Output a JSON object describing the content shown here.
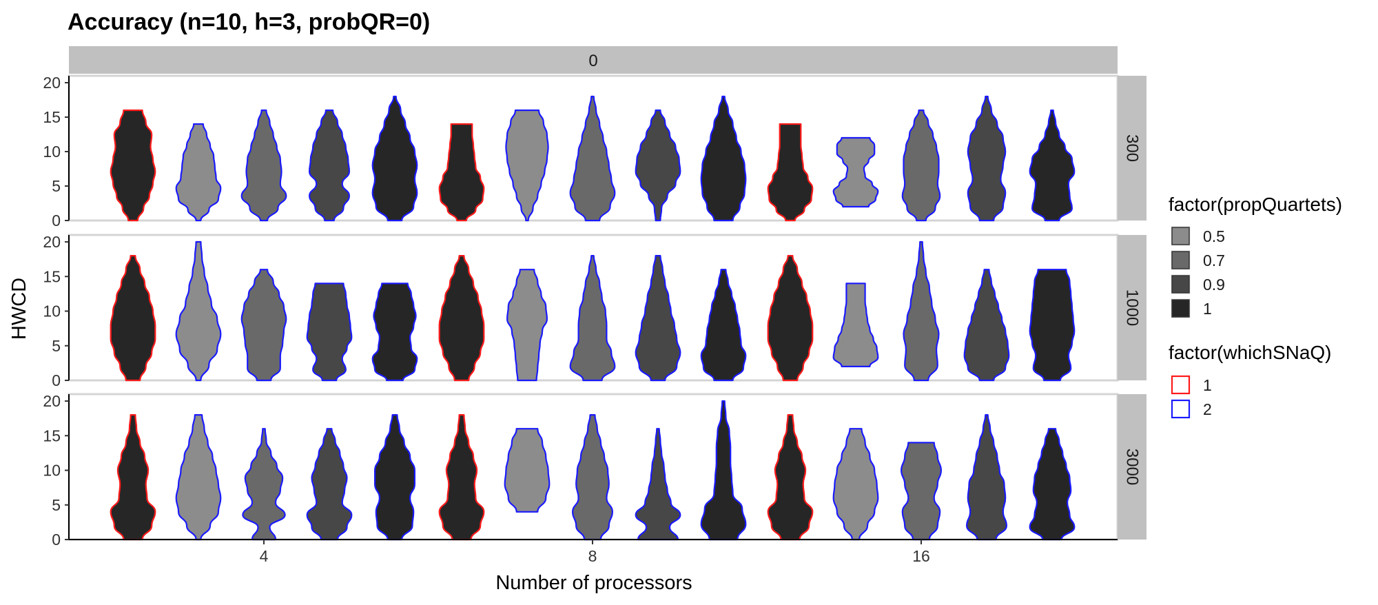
{
  "chart_data": {
    "type": "violin",
    "title": "Accuracy (n=10, h=3, probQR=0)",
    "xlabel": "Number of processors",
    "ylabel": "HWCD",
    "ylim": [
      0,
      21
    ],
    "y_ticks": [
      "0",
      "5",
      "10",
      "15",
      "20"
    ],
    "x_categories": [
      "4",
      "8",
      "16"
    ],
    "column_facet": "0",
    "row_facets": [
      "300",
      "1000",
      "3000"
    ],
    "legend_fill": {
      "title": "factor(propQuartets)",
      "levels": [
        "0.5",
        "0.7",
        "0.9",
        "1"
      ],
      "colors": [
        "#8c8c8c",
        "#696969",
        "#474747",
        "#262626"
      ]
    },
    "legend_color": {
      "title": "factor(whichSNaQ)",
      "levels": [
        "1",
        "2"
      ],
      "colors": [
        "#ff1a1a",
        "#1a1aff"
      ]
    },
    "groups": [
      {
        "propQuartets": "1",
        "whichSNaQ": "1"
      },
      {
        "propQuartets": "0.5",
        "whichSNaQ": "2"
      },
      {
        "propQuartets": "0.7",
        "whichSNaQ": "2"
      },
      {
        "propQuartets": "0.9",
        "whichSNaQ": "2"
      },
      {
        "propQuartets": "1",
        "whichSNaQ": "2"
      }
    ],
    "violins": [
      {
        "rows": "300",
        "processors": "4",
        "group": 0,
        "range": [
          0,
          16
        ],
        "width": [
          0.2,
          0.45,
          0.7,
          0.85,
          0.95,
          0.85,
          0.75,
          0.8,
          0.55,
          0.4
        ]
      },
      {
        "rows": "300",
        "processors": "4",
        "group": 1,
        "range": [
          0,
          14
        ],
        "width": [
          0.1,
          0.45,
          0.85,
          0.95,
          0.75,
          0.7,
          0.65,
          0.5,
          0.35,
          0.2
        ]
      },
      {
        "rows": "300",
        "processors": "4",
        "group": 2,
        "range": [
          0,
          16
        ],
        "width": [
          0.15,
          0.6,
          0.95,
          0.7,
          0.75,
          0.7,
          0.55,
          0.4,
          0.25,
          0.1
        ]
      },
      {
        "rows": "300",
        "processors": "4",
        "group": 3,
        "range": [
          0,
          16
        ],
        "width": [
          0.2,
          0.6,
          0.85,
          0.55,
          0.85,
          0.8,
          0.7,
          0.55,
          0.35,
          0.15
        ]
      },
      {
        "rows": "300",
        "processors": "4",
        "group": 4,
        "range": [
          0,
          18
        ],
        "width": [
          0.3,
          0.8,
          0.95,
          0.85,
          0.95,
          0.85,
          0.65,
          0.45,
          0.25,
          0.05
        ]
      },
      {
        "rows": "300",
        "processors": "8",
        "group": 0,
        "range": [
          0,
          14
        ],
        "width": [
          0.2,
          0.6,
          0.9,
          0.95,
          0.8,
          0.6,
          0.55,
          0.5,
          0.45,
          0.45
        ]
      },
      {
        "rows": "300",
        "processors": "8",
        "group": 1,
        "range": [
          0,
          16
        ],
        "width": [
          0.05,
          0.25,
          0.45,
          0.6,
          0.75,
          0.85,
          0.9,
          0.85,
          0.7,
          0.5
        ]
      },
      {
        "rows": "300",
        "processors": "8",
        "group": 2,
        "range": [
          0,
          18
        ],
        "width": [
          0.3,
          0.75,
          0.95,
          0.8,
          0.7,
          0.6,
          0.45,
          0.3,
          0.15,
          0.05
        ]
      },
      {
        "rows": "300",
        "processors": "8",
        "group": 3,
        "range": [
          0,
          16
        ],
        "width": [
          0.1,
          0.15,
          0.4,
          0.75,
          0.95,
          0.9,
          0.75,
          0.5,
          0.3,
          0.1
        ]
      },
      {
        "rows": "300",
        "processors": "8",
        "group": 4,
        "range": [
          0,
          18
        ],
        "width": [
          0.4,
          0.7,
          0.9,
          0.95,
          0.9,
          0.75,
          0.55,
          0.4,
          0.2,
          0.05
        ]
      },
      {
        "rows": "300",
        "processors": "16",
        "group": 0,
        "range": [
          0,
          14
        ],
        "width": [
          0.2,
          0.6,
          0.9,
          0.95,
          0.75,
          0.55,
          0.5,
          0.45,
          0.45,
          0.45
        ]
      },
      {
        "rows": "300",
        "processors": "16",
        "group": 1,
        "range": [
          2,
          12
        ],
        "width": [
          0.55,
          0.85,
          0.95,
          0.7,
          0.4,
          0.35,
          0.55,
          0.8,
          0.8,
          0.6
        ]
      },
      {
        "rows": "300",
        "processors": "16",
        "group": 2,
        "range": [
          0,
          16
        ],
        "width": [
          0.2,
          0.6,
          0.8,
          0.7,
          0.75,
          0.75,
          0.65,
          0.5,
          0.3,
          0.1
        ]
      },
      {
        "rows": "300",
        "processors": "16",
        "group": 3,
        "range": [
          0,
          18
        ],
        "width": [
          0.3,
          0.7,
          0.8,
          0.6,
          0.7,
          0.8,
          0.7,
          0.45,
          0.2,
          0.05
        ]
      },
      {
        "rows": "300",
        "processors": "16",
        "group": 4,
        "range": [
          0,
          16
        ],
        "width": [
          0.3,
          0.85,
          0.75,
          0.7,
          0.95,
          0.85,
          0.55,
          0.3,
          0.15,
          0.05
        ]
      },
      {
        "rows": "1000",
        "processors": "4",
        "group": 0,
        "range": [
          0,
          18
        ],
        "width": [
          0.3,
          0.55,
          0.8,
          0.95,
          0.95,
          0.85,
          0.7,
          0.5,
          0.3,
          0.1
        ]
      },
      {
        "rows": "1000",
        "processors": "4",
        "group": 1,
        "range": [
          0,
          20
        ],
        "width": [
          0.1,
          0.45,
          0.8,
          0.95,
          0.8,
          0.55,
          0.4,
          0.25,
          0.15,
          0.1
        ]
      },
      {
        "rows": "1000",
        "processors": "4",
        "group": 2,
        "range": [
          0,
          16
        ],
        "width": [
          0.3,
          0.7,
          0.7,
          0.8,
          0.85,
          0.95,
          0.85,
          0.65,
          0.4,
          0.15
        ]
      },
      {
        "rows": "1000",
        "processors": "4",
        "group": 3,
        "range": [
          0,
          14
        ],
        "width": [
          0.3,
          0.7,
          0.55,
          0.75,
          0.95,
          0.9,
          0.85,
          0.75,
          0.7,
          0.6
        ]
      },
      {
        "rows": "1000",
        "processors": "4",
        "group": 4,
        "range": [
          0,
          14
        ],
        "width": [
          0.35,
          0.85,
          0.95,
          0.7,
          0.65,
          0.8,
          0.9,
          0.8,
          0.7,
          0.55
        ]
      },
      {
        "rows": "1000",
        "processors": "8",
        "group": 0,
        "range": [
          0,
          18
        ],
        "width": [
          0.3,
          0.55,
          0.8,
          0.95,
          0.95,
          0.85,
          0.7,
          0.5,
          0.3,
          0.1
        ]
      },
      {
        "rows": "1000",
        "processors": "8",
        "group": 1,
        "range": [
          0,
          16
        ],
        "width": [
          0.4,
          0.45,
          0.5,
          0.55,
          0.65,
          0.85,
          0.8,
          0.6,
          0.45,
          0.3
        ]
      },
      {
        "rows": "1000",
        "processors": "8",
        "group": 2,
        "range": [
          0,
          18
        ],
        "width": [
          0.4,
          0.95,
          0.8,
          0.6,
          0.6,
          0.55,
          0.4,
          0.3,
          0.15,
          0.05
        ]
      },
      {
        "rows": "1000",
        "processors": "8",
        "group": 3,
        "range": [
          0,
          18
        ],
        "width": [
          0.3,
          0.8,
          0.95,
          0.8,
          0.7,
          0.55,
          0.45,
          0.3,
          0.2,
          0.1
        ]
      },
      {
        "rows": "1000",
        "processors": "8",
        "group": 4,
        "range": [
          0,
          16
        ],
        "width": [
          0.4,
          0.85,
          0.95,
          0.75,
          0.7,
          0.6,
          0.5,
          0.35,
          0.2,
          0.1
        ]
      },
      {
        "rows": "1000",
        "processors": "16",
        "group": 0,
        "range": [
          0,
          18
        ],
        "width": [
          0.3,
          0.55,
          0.8,
          0.95,
          0.95,
          0.85,
          0.7,
          0.5,
          0.3,
          0.1
        ]
      },
      {
        "rows": "1000",
        "processors": "16",
        "group": 1,
        "range": [
          2,
          14
        ],
        "width": [
          0.6,
          0.95,
          0.9,
          0.75,
          0.6,
          0.5,
          0.45,
          0.4,
          0.4,
          0.4
        ]
      },
      {
        "rows": "1000",
        "processors": "16",
        "group": 2,
        "range": [
          0,
          20
        ],
        "width": [
          0.3,
          0.7,
          0.65,
          0.75,
          0.6,
          0.45,
          0.35,
          0.2,
          0.1,
          0.05
        ]
      },
      {
        "rows": "1000",
        "processors": "16",
        "group": 3,
        "range": [
          0,
          16
        ],
        "width": [
          0.3,
          0.8,
          0.95,
          0.9,
          0.8,
          0.65,
          0.5,
          0.35,
          0.2,
          0.1
        ]
      },
      {
        "rows": "1000",
        "processors": "16",
        "group": 4,
        "range": [
          0,
          16
        ],
        "width": [
          0.35,
          0.8,
          0.7,
          0.85,
          0.95,
          0.9,
          0.85,
          0.8,
          0.75,
          0.6
        ]
      },
      {
        "rows": "3000",
        "processors": "4",
        "group": 0,
        "range": [
          0,
          18
        ],
        "width": [
          0.4,
          0.8,
          0.95,
          0.6,
          0.55,
          0.65,
          0.5,
          0.3,
          0.15,
          0.1
        ]
      },
      {
        "rows": "3000",
        "processors": "4",
        "group": 1,
        "range": [
          0,
          18
        ],
        "width": [
          0.1,
          0.5,
          0.85,
          0.95,
          0.85,
          0.75,
          0.6,
          0.4,
          0.25,
          0.15
        ]
      },
      {
        "rows": "3000",
        "processors": "4",
        "group": 2,
        "range": [
          0,
          16
        ],
        "width": [
          0.5,
          0.25,
          0.9,
          0.5,
          0.7,
          0.8,
          0.55,
          0.3,
          0.1,
          0.05
        ]
      },
      {
        "rows": "3000",
        "processors": "4",
        "group": 3,
        "range": [
          0,
          16
        ],
        "width": [
          0.35,
          0.75,
          0.95,
          0.55,
          0.65,
          0.75,
          0.6,
          0.45,
          0.25,
          0.1
        ]
      },
      {
        "rows": "3000",
        "processors": "4",
        "group": 4,
        "range": [
          0,
          18
        ],
        "width": [
          0.3,
          0.75,
          0.8,
          0.65,
          0.85,
          0.85,
          0.65,
          0.4,
          0.2,
          0.1
        ]
      },
      {
        "rows": "3000",
        "processors": "8",
        "group": 0,
        "range": [
          0,
          18
        ],
        "width": [
          0.4,
          0.8,
          0.95,
          0.6,
          0.55,
          0.65,
          0.5,
          0.3,
          0.15,
          0.1
        ]
      },
      {
        "rows": "3000",
        "processors": "8",
        "group": 1,
        "range": [
          4,
          16
        ],
        "width": [
          0.45,
          0.8,
          0.95,
          0.9,
          0.8,
          0.65,
          0.45
        ]
      },
      {
        "rows": "3000",
        "processors": "8",
        "group": 2,
        "range": [
          0,
          18
        ],
        "width": [
          0.35,
          0.7,
          0.85,
          0.6,
          0.7,
          0.65,
          0.5,
          0.35,
          0.2,
          0.1
        ]
      },
      {
        "rows": "3000",
        "processors": "8",
        "group": 3,
        "range": [
          0,
          16
        ],
        "width": [
          0.85,
          0.5,
          0.95,
          0.55,
          0.4,
          0.3,
          0.25,
          0.15,
          0.1,
          0.05
        ]
      },
      {
        "rows": "3000",
        "processors": "8",
        "group": 4,
        "range": [
          0,
          20
        ],
        "width": [
          0.6,
          0.95,
          0.8,
          0.4,
          0.35,
          0.3,
          0.3,
          0.25,
          0.1,
          0.05
        ]
      },
      {
        "rows": "3000",
        "processors": "16",
        "group": 0,
        "range": [
          0,
          18
        ],
        "width": [
          0.4,
          0.8,
          0.95,
          0.6,
          0.55,
          0.65,
          0.5,
          0.3,
          0.15,
          0.1
        ]
      },
      {
        "rows": "3000",
        "processors": "16",
        "group": 1,
        "range": [
          0,
          16
        ],
        "width": [
          0.15,
          0.5,
          0.8,
          0.95,
          0.9,
          0.8,
          0.6,
          0.4,
          0.25
        ]
      },
      {
        "rows": "3000",
        "processors": "16",
        "group": 2,
        "range": [
          0,
          14
        ],
        "width": [
          0.35,
          0.7,
          0.8,
          0.55,
          0.7,
          0.85,
          0.7,
          0.55
        ]
      },
      {
        "rows": "3000",
        "processors": "16",
        "group": 3,
        "range": [
          0,
          18
        ],
        "width": [
          0.4,
          0.85,
          0.7,
          0.8,
          0.75,
          0.55,
          0.45,
          0.3,
          0.15,
          0.05
        ]
      },
      {
        "rows": "3000",
        "processors": "16",
        "group": 4,
        "range": [
          0,
          16
        ],
        "width": [
          0.4,
          0.95,
          0.75,
          0.65,
          0.8,
          0.75,
          0.6,
          0.45,
          0.3,
          0.15
        ]
      }
    ]
  }
}
